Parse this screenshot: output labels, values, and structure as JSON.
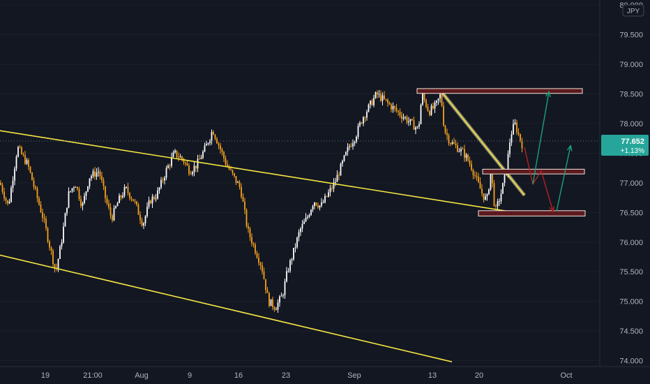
{
  "symbol_currency": "JPY",
  "current_price": "77.652",
  "current_change": "+1.13%",
  "colors": {
    "background": "#131722",
    "up_candle": "#ffffff",
    "down_candle": "#f7a21b",
    "trendline": "#f5e642",
    "zone_border": "#f2e6d9",
    "zone_fill": "#5c1a1f",
    "arrow_red": "#b22222",
    "arrow_green": "#1aa37a",
    "price_badge": "#26a69a"
  },
  "chart_data": {
    "type": "candlestick",
    "ylim": [
      73.9,
      80.05
    ],
    "y_ticks": [
      "80.000",
      "79.500",
      "79.000",
      "78.500",
      "78.000",
      "77.500",
      "77.000",
      "76.500",
      "76.000",
      "75.500",
      "75.000",
      "74.500",
      "74.000"
    ],
    "x_ticks": [
      "19",
      "21:00",
      "Aug",
      "9",
      "16",
      "23",
      "Sep",
      "13",
      "20",
      "Oct"
    ],
    "price_path": [
      [
        0,
        77.0
      ],
      [
        12,
        76.6
      ],
      [
        25,
        77.6
      ],
      [
        40,
        77.3
      ],
      [
        52,
        76.8
      ],
      [
        62,
        76.4
      ],
      [
        72,
        75.9
      ],
      [
        80,
        75.5
      ],
      [
        88,
        76.0
      ],
      [
        98,
        76.8
      ],
      [
        108,
        77.0
      ],
      [
        118,
        76.6
      ],
      [
        128,
        77.1
      ],
      [
        142,
        77.2
      ],
      [
        152,
        76.7
      ],
      [
        160,
        76.4
      ],
      [
        170,
        76.7
      ],
      [
        180,
        76.9
      ],
      [
        192,
        76.7
      ],
      [
        205,
        76.3
      ],
      [
        215,
        76.7
      ],
      [
        225,
        76.8
      ],
      [
        238,
        77.2
      ],
      [
        250,
        77.5
      ],
      [
        262,
        77.4
      ],
      [
        272,
        77.2
      ],
      [
        282,
        77.3
      ],
      [
        295,
        77.6
      ],
      [
        305,
        77.9
      ],
      [
        315,
        77.6
      ],
      [
        325,
        77.3
      ],
      [
        335,
        77.1
      ],
      [
        345,
        76.9
      ],
      [
        355,
        76.2
      ],
      [
        365,
        75.9
      ],
      [
        375,
        75.6
      ],
      [
        385,
        75.0
      ],
      [
        395,
        74.9
      ],
      [
        405,
        75.1
      ],
      [
        412,
        75.5
      ],
      [
        420,
        75.8
      ],
      [
        430,
        76.2
      ],
      [
        440,
        76.4
      ],
      [
        450,
        76.7
      ],
      [
        460,
        76.6
      ],
      [
        470,
        76.8
      ],
      [
        480,
        77.0
      ],
      [
        490,
        77.3
      ],
      [
        500,
        77.6
      ],
      [
        510,
        77.8
      ],
      [
        520,
        78.1
      ],
      [
        530,
        78.3
      ],
      [
        540,
        78.5
      ],
      [
        550,
        78.4
      ],
      [
        560,
        78.3
      ],
      [
        570,
        78.2
      ],
      [
        580,
        78.1
      ],
      [
        590,
        78.0
      ],
      [
        600,
        77.9
      ],
      [
        605,
        78.5
      ],
      [
        615,
        78.2
      ],
      [
        625,
        78.3
      ],
      [
        632,
        78.5
      ],
      [
        637,
        77.9
      ],
      [
        645,
        77.7
      ],
      [
        655,
        77.6
      ],
      [
        665,
        77.5
      ],
      [
        675,
        77.3
      ],
      [
        685,
        77.0
      ],
      [
        692,
        76.8
      ],
      [
        698,
        76.7
      ],
      [
        704,
        77.2
      ],
      [
        710,
        76.5
      ],
      [
        718,
        76.8
      ],
      [
        726,
        77.2
      ],
      [
        732,
        77.8
      ],
      [
        738,
        78.0
      ],
      [
        744,
        77.8
      ],
      [
        750,
        77.6
      ]
    ],
    "trendlines": [
      {
        "x1": 0,
        "y1": 77.88,
        "x2": 760,
        "y2": 76.46
      },
      {
        "x1": 0,
        "y1": 75.78,
        "x2": 648,
        "y2": 73.98
      },
      {
        "x1": 630,
        "y1": 78.58,
        "x2": 752,
        "y2": 76.79
      }
    ],
    "zones": [
      {
        "x1": 598,
        "x2": 835,
        "top": 78.59,
        "bottom": 78.51
      },
      {
        "x1": 692,
        "x2": 838,
        "top": 77.23,
        "bottom": 77.15
      },
      {
        "x1": 686,
        "x2": 839,
        "top": 76.53,
        "bottom": 76.44
      }
    ],
    "arrows": [
      {
        "color": "red",
        "points": [
          [
            752,
            77.6
          ],
          [
            764,
            76.98
          ],
          [
            776,
            77.2
          ],
          [
            793,
            76.52
          ]
        ]
      },
      {
        "color": "green",
        "points": [
          [
            764,
            76.98
          ],
          [
            787,
            78.53
          ]
        ]
      },
      {
        "color": "green",
        "points": [
          [
            798,
            76.52
          ],
          [
            818,
            77.62
          ]
        ]
      }
    ]
  }
}
